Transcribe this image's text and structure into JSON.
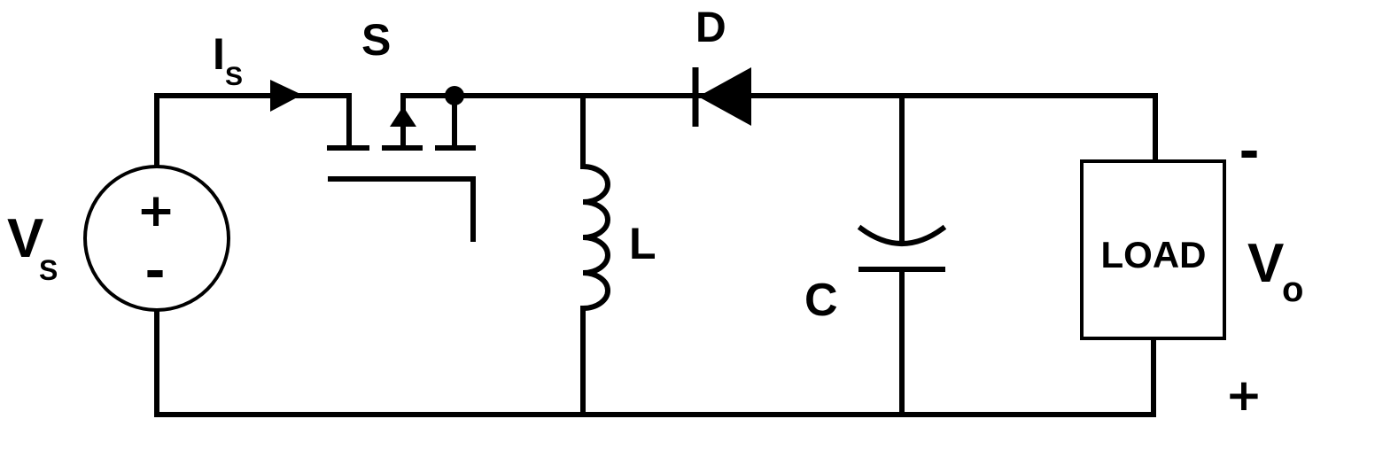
{
  "source": {
    "symbol_main": "V",
    "symbol_sub": "S",
    "plus": "+",
    "minus": "-"
  },
  "current": {
    "symbol_main": "I",
    "symbol_sub": "S"
  },
  "switch": {
    "label": "S"
  },
  "diode": {
    "label": "D"
  },
  "inductor": {
    "label": "L"
  },
  "capacitor": {
    "label": "C"
  },
  "load": {
    "label": "LOAD"
  },
  "output": {
    "symbol_main": "V",
    "symbol_sub": "o",
    "top_polarity": "-",
    "bottom_polarity": "+"
  }
}
